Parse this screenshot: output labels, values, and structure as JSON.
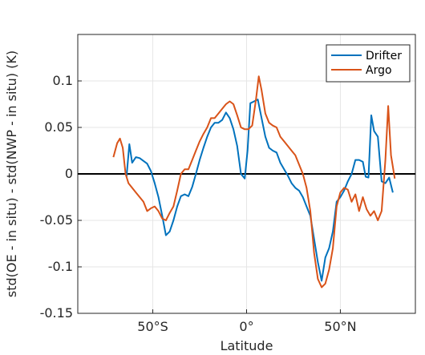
{
  "chart_data": {
    "type": "line",
    "title": "",
    "xlabel": "Latitude",
    "ylabel": "std(OE - in situ) - std(NWP - in situ) (K)",
    "xlim": [
      -90,
      90
    ],
    "ylim": [
      -0.15,
      0.15
    ],
    "x_ticks": [
      {
        "value": -50,
        "label": "50°S"
      },
      {
        "value": 0,
        "label": "0°"
      },
      {
        "value": 50,
        "label": "50°N"
      }
    ],
    "y_ticks": [
      {
        "value": -0.15,
        "label": "-0.15"
      },
      {
        "value": -0.1,
        "label": "-0.1"
      },
      {
        "value": -0.05,
        "label": "-0.05"
      },
      {
        "value": 0,
        "label": "0"
      },
      {
        "value": 0.05,
        "label": "0.05"
      },
      {
        "value": 0.1,
        "label": "0.1"
      }
    ],
    "grid": true,
    "zero_line": true,
    "legend_position": "top-right",
    "series": [
      {
        "name": "Drifter",
        "color": "#0072BD",
        "points": [
          [
            -64,
            -0.003
          ],
          [
            -62.5,
            0.032
          ],
          [
            -61,
            0.012
          ],
          [
            -59,
            0.018
          ],
          [
            -57,
            0.017
          ],
          [
            -55,
            0.014
          ],
          [
            -53,
            0.011
          ],
          [
            -51,
            0.003
          ],
          [
            -49,
            -0.01
          ],
          [
            -47,
            -0.025
          ],
          [
            -45,
            -0.045
          ],
          [
            -43,
            -0.066
          ],
          [
            -41,
            -0.062
          ],
          [
            -39,
            -0.05
          ],
          [
            -37,
            -0.035
          ],
          [
            -35,
            -0.024
          ],
          [
            -33,
            -0.022
          ],
          [
            -31,
            -0.024
          ],
          [
            -29,
            -0.014
          ],
          [
            -27,
            0.0
          ],
          [
            -25,
            0.015
          ],
          [
            -23,
            0.028
          ],
          [
            -21,
            0.04
          ],
          [
            -19,
            0.05
          ],
          [
            -17,
            0.055
          ],
          [
            -15,
            0.055
          ],
          [
            -13,
            0.058
          ],
          [
            -11,
            0.066
          ],
          [
            -9,
            0.06
          ],
          [
            -7,
            0.048
          ],
          [
            -5,
            0.03
          ],
          [
            -3,
            0.0
          ],
          [
            -1,
            -0.005
          ],
          [
            0.5,
            0.025
          ],
          [
            2,
            0.076
          ],
          [
            4,
            0.078
          ],
          [
            6,
            0.08
          ],
          [
            8,
            0.06
          ],
          [
            10,
            0.04
          ],
          [
            12,
            0.028
          ],
          [
            14,
            0.025
          ],
          [
            16,
            0.023
          ],
          [
            18,
            0.012
          ],
          [
            20,
            0.005
          ],
          [
            22,
            -0.002
          ],
          [
            24,
            -0.01
          ],
          [
            26,
            -0.015
          ],
          [
            28,
            -0.018
          ],
          [
            30,
            -0.025
          ],
          [
            32,
            -0.035
          ],
          [
            34,
            -0.045
          ],
          [
            36,
            -0.07
          ],
          [
            38,
            -0.095
          ],
          [
            40,
            -0.115
          ],
          [
            42,
            -0.09
          ],
          [
            44,
            -0.08
          ],
          [
            46,
            -0.062
          ],
          [
            48,
            -0.03
          ],
          [
            50,
            -0.025
          ],
          [
            52,
            -0.018
          ],
          [
            54,
            -0.008
          ],
          [
            56,
            0.0
          ],
          [
            58,
            0.015
          ],
          [
            60,
            0.015
          ],
          [
            62,
            0.013
          ],
          [
            63.5,
            -0.003
          ],
          [
            65,
            -0.004
          ],
          [
            66.5,
            0.063
          ],
          [
            68,
            0.046
          ],
          [
            70,
            0.04
          ],
          [
            72,
            -0.008
          ],
          [
            74,
            -0.01
          ],
          [
            76,
            -0.004
          ],
          [
            78,
            -0.02
          ]
        ]
      },
      {
        "name": "Argo",
        "color": "#D95319",
        "points": [
          [
            -71,
            0.018
          ],
          [
            -69,
            0.033
          ],
          [
            -67.5,
            0.038
          ],
          [
            -66,
            0.028
          ],
          [
            -64.5,
            0.0
          ],
          [
            -63,
            -0.01
          ],
          [
            -61,
            -0.015
          ],
          [
            -59,
            -0.02
          ],
          [
            -57,
            -0.025
          ],
          [
            -55,
            -0.03
          ],
          [
            -53,
            -0.04
          ],
          [
            -51,
            -0.037
          ],
          [
            -49,
            -0.035
          ],
          [
            -47,
            -0.04
          ],
          [
            -45,
            -0.048
          ],
          [
            -43,
            -0.05
          ],
          [
            -41,
            -0.042
          ],
          [
            -39,
            -0.035
          ],
          [
            -37,
            -0.018
          ],
          [
            -35,
            0.0
          ],
          [
            -33,
            0.005
          ],
          [
            -31,
            0.005
          ],
          [
            -29,
            0.015
          ],
          [
            -27,
            0.025
          ],
          [
            -25,
            0.035
          ],
          [
            -23,
            0.043
          ],
          [
            -21,
            0.05
          ],
          [
            -19,
            0.06
          ],
          [
            -17,
            0.06
          ],
          [
            -15,
            0.065
          ],
          [
            -13,
            0.07
          ],
          [
            -11,
            0.075
          ],
          [
            -9,
            0.078
          ],
          [
            -7,
            0.075
          ],
          [
            -5,
            0.063
          ],
          [
            -3,
            0.05
          ],
          [
            -1,
            0.048
          ],
          [
            1,
            0.048
          ],
          [
            3,
            0.052
          ],
          [
            5,
            0.08
          ],
          [
            6.5,
            0.105
          ],
          [
            8,
            0.09
          ],
          [
            10,
            0.065
          ],
          [
            12,
            0.055
          ],
          [
            14,
            0.052
          ],
          [
            16,
            0.05
          ],
          [
            18,
            0.04
          ],
          [
            20,
            0.035
          ],
          [
            22,
            0.03
          ],
          [
            24,
            0.025
          ],
          [
            26,
            0.02
          ],
          [
            28,
            0.01
          ],
          [
            30,
            0.0
          ],
          [
            32,
            -0.015
          ],
          [
            34,
            -0.04
          ],
          [
            36,
            -0.085
          ],
          [
            38,
            -0.113
          ],
          [
            40,
            -0.122
          ],
          [
            42,
            -0.118
          ],
          [
            44,
            -0.103
          ],
          [
            46,
            -0.08
          ],
          [
            48,
            -0.035
          ],
          [
            50,
            -0.02
          ],
          [
            52,
            -0.015
          ],
          [
            54,
            -0.017
          ],
          [
            56,
            -0.03
          ],
          [
            58,
            -0.022
          ],
          [
            60,
            -0.04
          ],
          [
            62,
            -0.025
          ],
          [
            64,
            -0.038
          ],
          [
            66,
            -0.045
          ],
          [
            68,
            -0.04
          ],
          [
            70,
            -0.05
          ],
          [
            72,
            -0.04
          ],
          [
            74,
            0.015
          ],
          [
            75.5,
            0.073
          ],
          [
            77,
            0.02
          ],
          [
            79,
            -0.005
          ]
        ]
      }
    ]
  }
}
